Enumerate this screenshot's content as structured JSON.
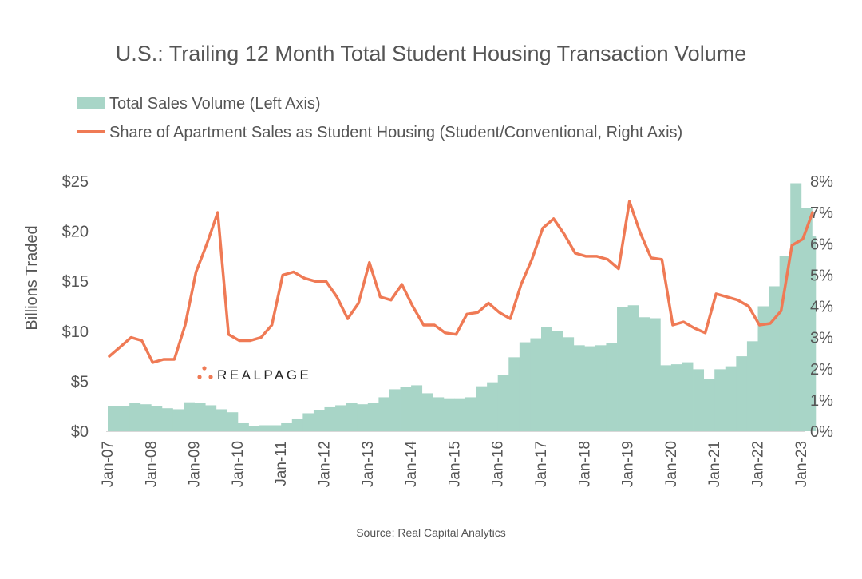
{
  "chart_data": {
    "type": "bar+line",
    "title": "U.S.: Trailing 12 Month Total Student Housing Transaction Volume",
    "ylabel": "Billions Traded",
    "ylim": [
      0,
      25
    ],
    "y2lim": [
      0,
      8
    ],
    "yticks": [
      "$0",
      "$5",
      "$10",
      "$15",
      "$20",
      "$25"
    ],
    "y2ticks": [
      "0%",
      "1%",
      "2%",
      "3%",
      "4%",
      "5%",
      "6%",
      "7%",
      "8%"
    ],
    "xticks": [
      "Jan-07",
      "Jan-08",
      "Jan-09",
      "Jan-10",
      "Jan-11",
      "Jan-12",
      "Jan-13",
      "Jan-14",
      "Jan-15",
      "Jan-16",
      "Jan-17",
      "Jan-18",
      "Jan-19",
      "Jan-20",
      "Jan-21",
      "Jan-22",
      "Jan-23"
    ],
    "x_frequency": "quarterly, Q1 2007 to Jan 2023",
    "legend": "top-left",
    "series": [
      {
        "name": "Total Sales Volume (Left Axis)",
        "type": "bar",
        "axis": "left",
        "color": "#a8d5c7",
        "values": [
          2.5,
          2.5,
          2.8,
          2.7,
          2.5,
          2.3,
          2.2,
          2.9,
          2.8,
          2.6,
          2.2,
          1.9,
          0.8,
          0.5,
          0.6,
          0.6,
          0.8,
          1.2,
          1.8,
          2.1,
          2.4,
          2.6,
          2.8,
          2.7,
          2.8,
          3.4,
          4.2,
          4.4,
          4.6,
          3.8,
          3.4,
          3.3,
          3.3,
          3.4,
          4.5,
          4.9,
          5.6,
          7.4,
          8.9,
          9.3,
          10.4,
          10.0,
          9.4,
          8.6,
          8.5,
          8.6,
          8.8,
          12.4,
          12.6,
          11.4,
          11.3,
          6.6,
          6.7,
          6.9,
          6.2,
          5.2,
          6.2,
          6.5,
          7.5,
          9.0,
          12.5,
          14.5,
          17.5,
          24.8,
          22.3,
          19.5
        ]
      },
      {
        "name": "Share of Apartment Sales as Student Housing (Student/Conventional, Right Axis)",
        "type": "line",
        "axis": "right",
        "color": "#ef7a55",
        "values": [
          2.4,
          2.7,
          3.0,
          2.9,
          2.2,
          2.3,
          2.3,
          3.4,
          5.1,
          6.0,
          7.0,
          3.1,
          2.9,
          2.9,
          3.0,
          3.4,
          5.0,
          5.1,
          4.9,
          4.8,
          4.8,
          4.3,
          3.6,
          4.1,
          5.4,
          4.3,
          4.2,
          4.7,
          4.0,
          3.4,
          3.4,
          3.15,
          3.1,
          3.75,
          3.8,
          4.1,
          3.8,
          3.6,
          4.7,
          5.5,
          6.5,
          6.8,
          6.3,
          5.7,
          5.6,
          5.6,
          5.5,
          5.2,
          7.35,
          6.35,
          5.55,
          5.5,
          3.4,
          3.5,
          3.3,
          3.15,
          4.4,
          4.3,
          4.2,
          4.0,
          3.4,
          3.45,
          3.85,
          5.95,
          6.15,
          7.0
        ]
      }
    ]
  },
  "source": "Source: Real Capital Analytics",
  "logo": "REALPAGE"
}
